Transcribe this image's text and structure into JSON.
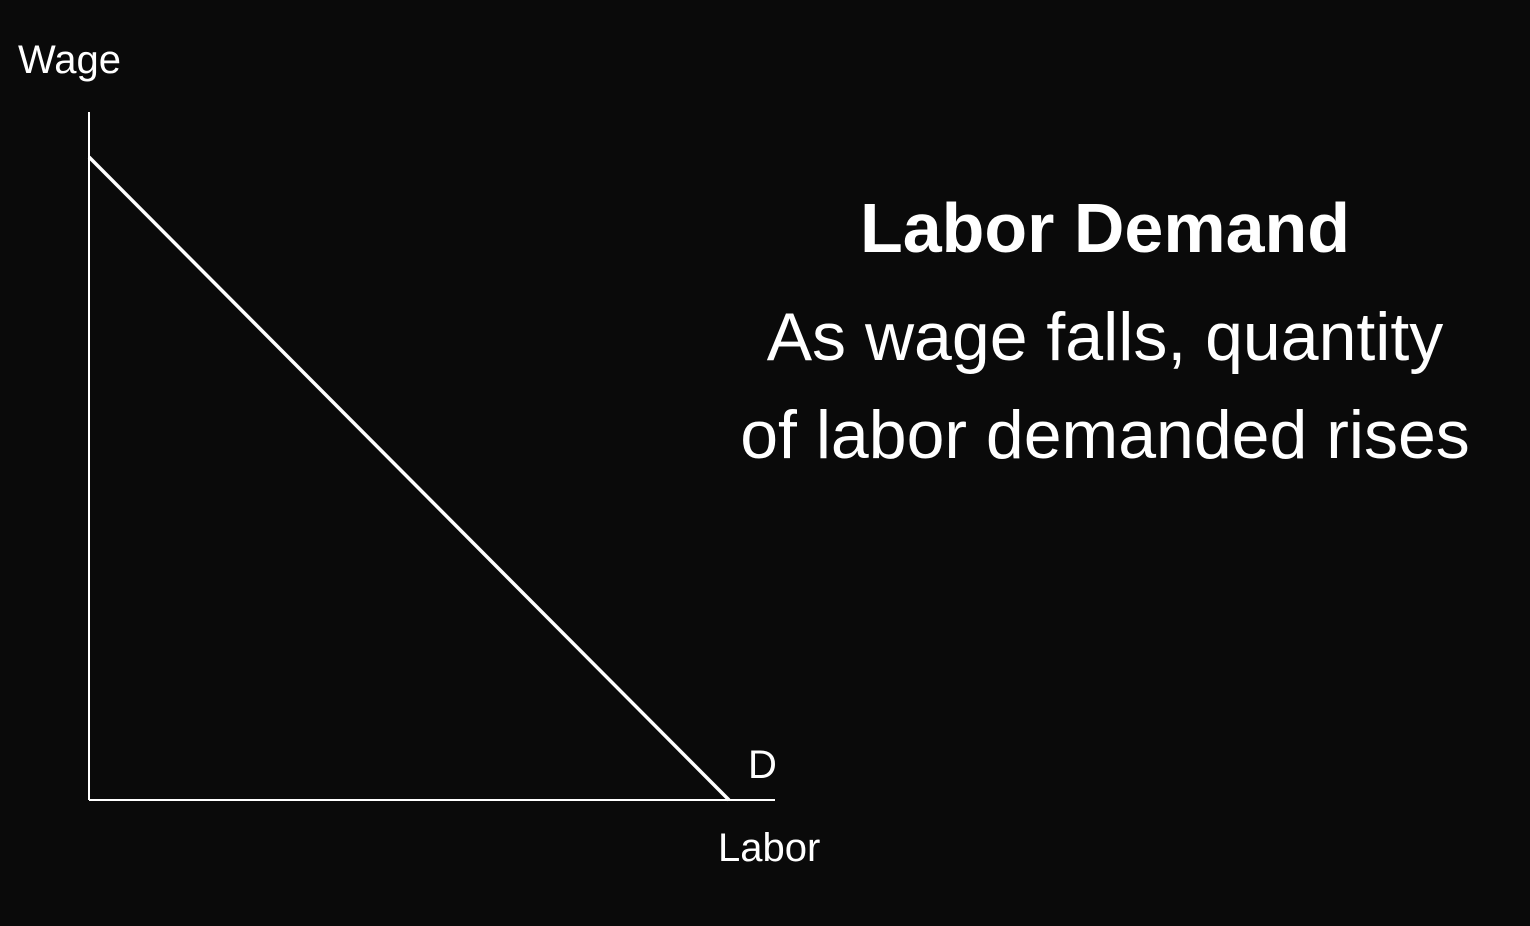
{
  "colors": {
    "background": "#0a0a0a",
    "foreground": "#ffffff"
  },
  "slide": {
    "title": "Labor Demand",
    "subtitle_lines": [
      "As wage falls, quantity",
      "of labor demanded rises"
    ]
  },
  "chart_data": {
    "type": "line",
    "xlabel": "Labor",
    "ylabel": "Wage",
    "series": [
      {
        "name": "D",
        "x": [
          0,
          1
        ],
        "y": [
          1,
          0
        ]
      }
    ],
    "xlim": [
      0,
      1
    ],
    "ylim": [
      0,
      1
    ],
    "grid": false
  }
}
